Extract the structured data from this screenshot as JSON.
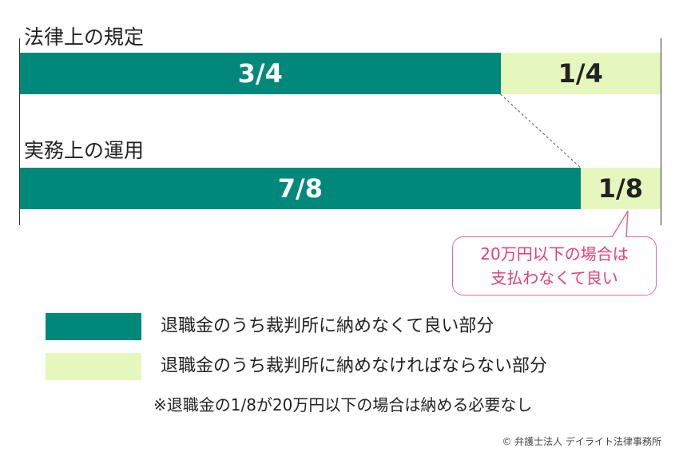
{
  "chart_data": {
    "type": "bar",
    "stacked": true,
    "orientation": "horizontal",
    "categories": [
      "法律上の規定",
      "実務上の運用"
    ],
    "series": [
      {
        "name": "退職金のうち裁判所に納めなくて良い部分",
        "values": [
          "3/4",
          "7/8"
        ],
        "fraction_values": [
          0.75,
          0.875
        ],
        "color": "#00897b"
      },
      {
        "name": "退職金のうち裁判所に納めなければならない部分",
        "values": [
          "1/4",
          "1/8"
        ],
        "fraction_values": [
          0.25,
          0.125
        ],
        "color": "#e6f7bd"
      }
    ],
    "xlim": [
      0,
      1
    ],
    "legend_placement": "bottom"
  },
  "callout": {
    "line1": "20万円以下の場合は",
    "line2": "支払わなくて良い",
    "color": "#e0407a"
  },
  "note": "※退職金の1/8が20万円以下の場合は納める必要なし",
  "credit": "© 弁護士法人 デイライト法律事務所"
}
